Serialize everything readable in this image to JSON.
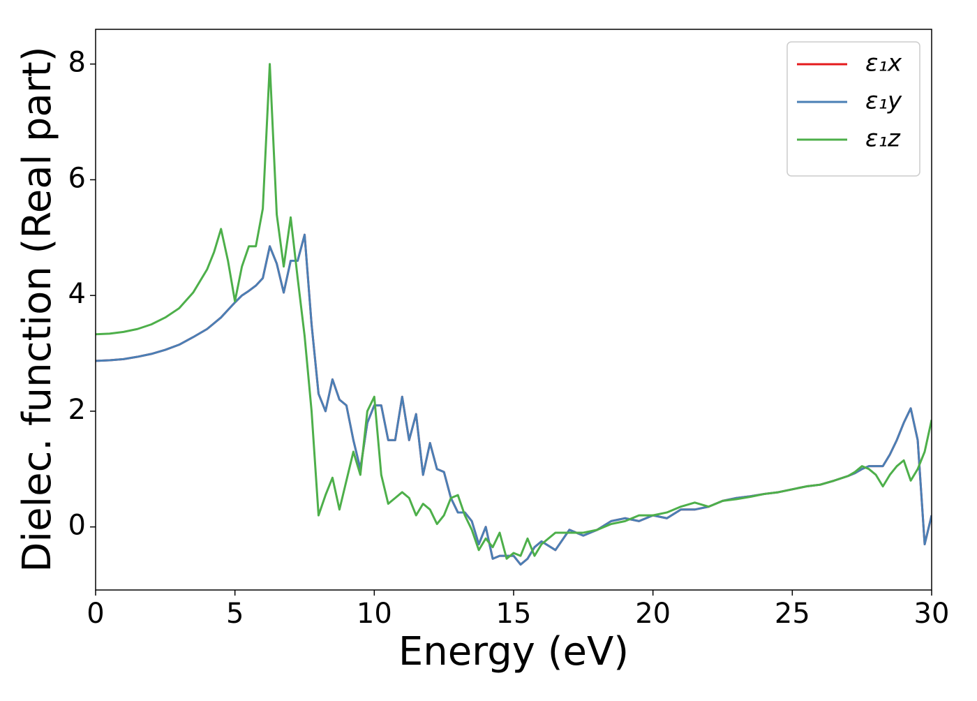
{
  "chart_data": {
    "type": "line",
    "xlabel": "Energy (eV)",
    "ylabel": "Dielec. function (Real part)",
    "x": [
      0,
      0.5,
      1,
      1.5,
      2,
      2.5,
      3,
      3.5,
      4,
      4.25,
      4.5,
      4.75,
      5,
      5.25,
      5.5,
      5.75,
      6,
      6.25,
      6.5,
      6.75,
      7,
      7.25,
      7.5,
      7.75,
      8,
      8.25,
      8.5,
      8.75,
      9,
      9.25,
      9.5,
      9.75,
      10,
      10.25,
      10.5,
      10.75,
      11,
      11.25,
      11.5,
      11.75,
      12,
      12.25,
      12.5,
      12.75,
      13,
      13.25,
      13.5,
      13.75,
      14,
      14.25,
      14.5,
      14.75,
      15,
      15.25,
      15.5,
      15.75,
      16,
      16.5,
      17,
      17.5,
      18,
      18.5,
      19,
      19.5,
      20,
      20.5,
      21,
      21.5,
      22,
      22.5,
      23,
      23.5,
      24,
      24.5,
      25,
      25.5,
      26,
      26.5,
      27,
      27.25,
      27.5,
      27.75,
      28,
      28.25,
      28.5,
      28.75,
      29,
      29.25,
      29.5,
      29.75,
      30
    ],
    "series": [
      {
        "name": "ε₁x",
        "color": "#e41a1c",
        "values": [
          2.87,
          2.88,
          2.9,
          2.94,
          2.99,
          3.06,
          3.15,
          3.28,
          3.42,
          3.52,
          3.62,
          3.75,
          3.88,
          4.0,
          4.08,
          4.17,
          4.3,
          4.85,
          4.55,
          4.05,
          4.6,
          4.6,
          5.05,
          3.5,
          2.3,
          2.0,
          2.55,
          2.2,
          2.1,
          1.5,
          1.0,
          1.8,
          2.1,
          2.1,
          1.5,
          1.5,
          2.25,
          1.5,
          1.95,
          0.9,
          1.45,
          1.0,
          0.95,
          0.5,
          0.25,
          0.25,
          0.1,
          -0.3,
          0.0,
          -0.55,
          -0.5,
          -0.5,
          -0.5,
          -0.65,
          -0.55,
          -0.35,
          -0.25,
          -0.4,
          -0.05,
          -0.15,
          -0.05,
          0.1,
          0.15,
          0.1,
          0.2,
          0.15,
          0.3,
          0.3,
          0.35,
          0.45,
          0.5,
          0.53,
          0.57,
          0.6,
          0.65,
          0.7,
          0.73,
          0.8,
          0.88,
          0.93,
          1.0,
          1.05,
          1.05,
          1.05,
          1.25,
          1.5,
          1.8,
          2.05,
          1.5,
          -0.3,
          0.2
        ]
      },
      {
        "name": "ε₁y",
        "color": "#4a7fb5",
        "values": [
          2.87,
          2.88,
          2.9,
          2.94,
          2.99,
          3.06,
          3.15,
          3.28,
          3.42,
          3.52,
          3.62,
          3.75,
          3.88,
          4.0,
          4.08,
          4.17,
          4.3,
          4.85,
          4.55,
          4.05,
          4.6,
          4.6,
          5.05,
          3.5,
          2.3,
          2.0,
          2.55,
          2.2,
          2.1,
          1.5,
          1.0,
          1.8,
          2.1,
          2.1,
          1.5,
          1.5,
          2.25,
          1.5,
          1.95,
          0.9,
          1.45,
          1.0,
          0.95,
          0.5,
          0.25,
          0.25,
          0.1,
          -0.3,
          0.0,
          -0.55,
          -0.5,
          -0.5,
          -0.5,
          -0.65,
          -0.55,
          -0.35,
          -0.25,
          -0.4,
          -0.05,
          -0.15,
          -0.05,
          0.1,
          0.15,
          0.1,
          0.2,
          0.15,
          0.3,
          0.3,
          0.35,
          0.45,
          0.5,
          0.53,
          0.57,
          0.6,
          0.65,
          0.7,
          0.73,
          0.8,
          0.88,
          0.93,
          1.0,
          1.05,
          1.05,
          1.05,
          1.25,
          1.5,
          1.8,
          2.05,
          1.5,
          -0.3,
          0.2
        ]
      },
      {
        "name": "ε₁z",
        "color": "#4daf4a",
        "values": [
          3.33,
          3.34,
          3.37,
          3.42,
          3.5,
          3.62,
          3.78,
          4.05,
          4.45,
          4.75,
          5.15,
          4.6,
          3.9,
          4.5,
          4.85,
          4.85,
          5.5,
          8.0,
          5.4,
          4.5,
          5.35,
          4.3,
          3.3,
          2.0,
          0.2,
          0.55,
          0.85,
          0.3,
          0.8,
          1.3,
          0.9,
          2.0,
          2.25,
          0.9,
          0.4,
          0.5,
          0.6,
          0.5,
          0.2,
          0.4,
          0.3,
          0.05,
          0.2,
          0.5,
          0.55,
          0.2,
          -0.05,
          -0.4,
          -0.2,
          -0.35,
          -0.1,
          -0.55,
          -0.45,
          -0.5,
          -0.2,
          -0.5,
          -0.3,
          -0.1,
          -0.1,
          -0.1,
          -0.05,
          0.05,
          0.1,
          0.2,
          0.2,
          0.25,
          0.35,
          0.42,
          0.35,
          0.45,
          0.48,
          0.52,
          0.57,
          0.6,
          0.65,
          0.7,
          0.73,
          0.8,
          0.88,
          0.95,
          1.05,
          1.0,
          0.9,
          0.7,
          0.9,
          1.05,
          1.15,
          0.8,
          1.0,
          1.3,
          1.85
        ]
      }
    ],
    "xlim": [
      0,
      30
    ],
    "xticks": [
      0,
      5,
      10,
      15,
      20,
      25,
      30
    ],
    "ylim": [
      -1.09,
      8.6
    ],
    "yticks": [
      0,
      2,
      4,
      6,
      8
    ],
    "legend": "upper right"
  }
}
